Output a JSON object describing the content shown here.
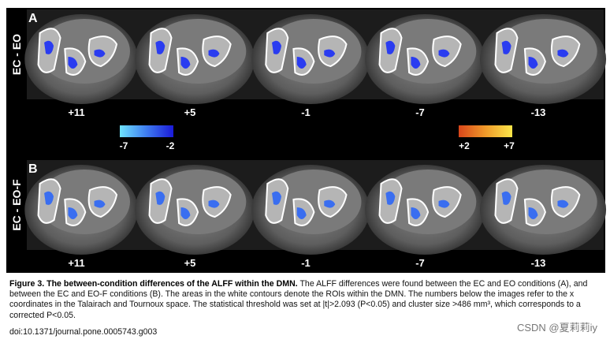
{
  "panels": [
    {
      "label": "A",
      "condition": "EC - EO",
      "coordinates": [
        "+11",
        "+5",
        "-1",
        "-7",
        "-13"
      ]
    },
    {
      "label": "B",
      "condition": "EC - EO-F",
      "coordinates": [
        "+11",
        "+5",
        "-1",
        "-7",
        "-13"
      ]
    }
  ],
  "colorbar": {
    "negative": [
      "-7",
      "-2"
    ],
    "positive": [
      "+2",
      "+7"
    ]
  },
  "caption": {
    "title": "Figure 3. The between-condition differences of the ALFF within the DMN.",
    "text": "The ALFF differences were found between the EC and EO conditions (A), and between the EC and EO-F conditions (B). The areas in the white contours denote the ROIs within the DMN. The numbers below the images refer to the x coordinates in the Talairach and Tournoux space. The statistical threshold was set at |t|>2.093 (P<0.05) and cluster size >486 mm³, which corresponds to a corrected P<0.05."
  },
  "doi": "doi:10.1371/journal.pone.0005743.g003",
  "watermark": "CSDN @夏莉莉iy"
}
